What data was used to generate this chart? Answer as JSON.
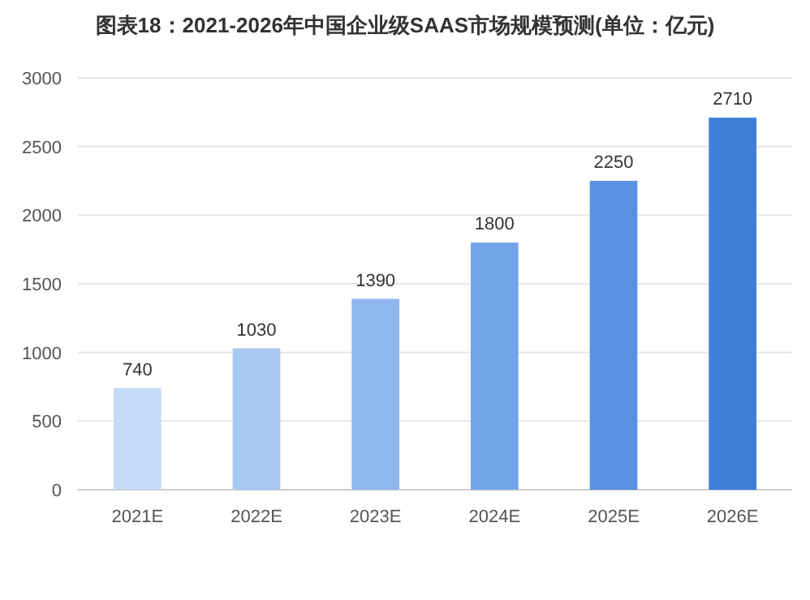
{
  "chart_data": {
    "type": "bar",
    "title": "图表18：2021-2026年中国企业级SAAS市场规模预测(单位：亿元)",
    "categories": [
      "2021E",
      "2022E",
      "2023E",
      "2024E",
      "2025E",
      "2026E"
    ],
    "values": [
      740,
      1030,
      1390,
      1800,
      2250,
      2710
    ],
    "colors": [
      "#c3dbf7",
      "#a9c9f2",
      "#8db7ee",
      "#72a4e9",
      "#5891e2",
      "#3e7fd9"
    ],
    "ylim": [
      0,
      3000
    ],
    "yticks": [
      0,
      500,
      1000,
      1500,
      2000,
      2500,
      3000
    ],
    "grid": "y",
    "data_labels": true
  }
}
